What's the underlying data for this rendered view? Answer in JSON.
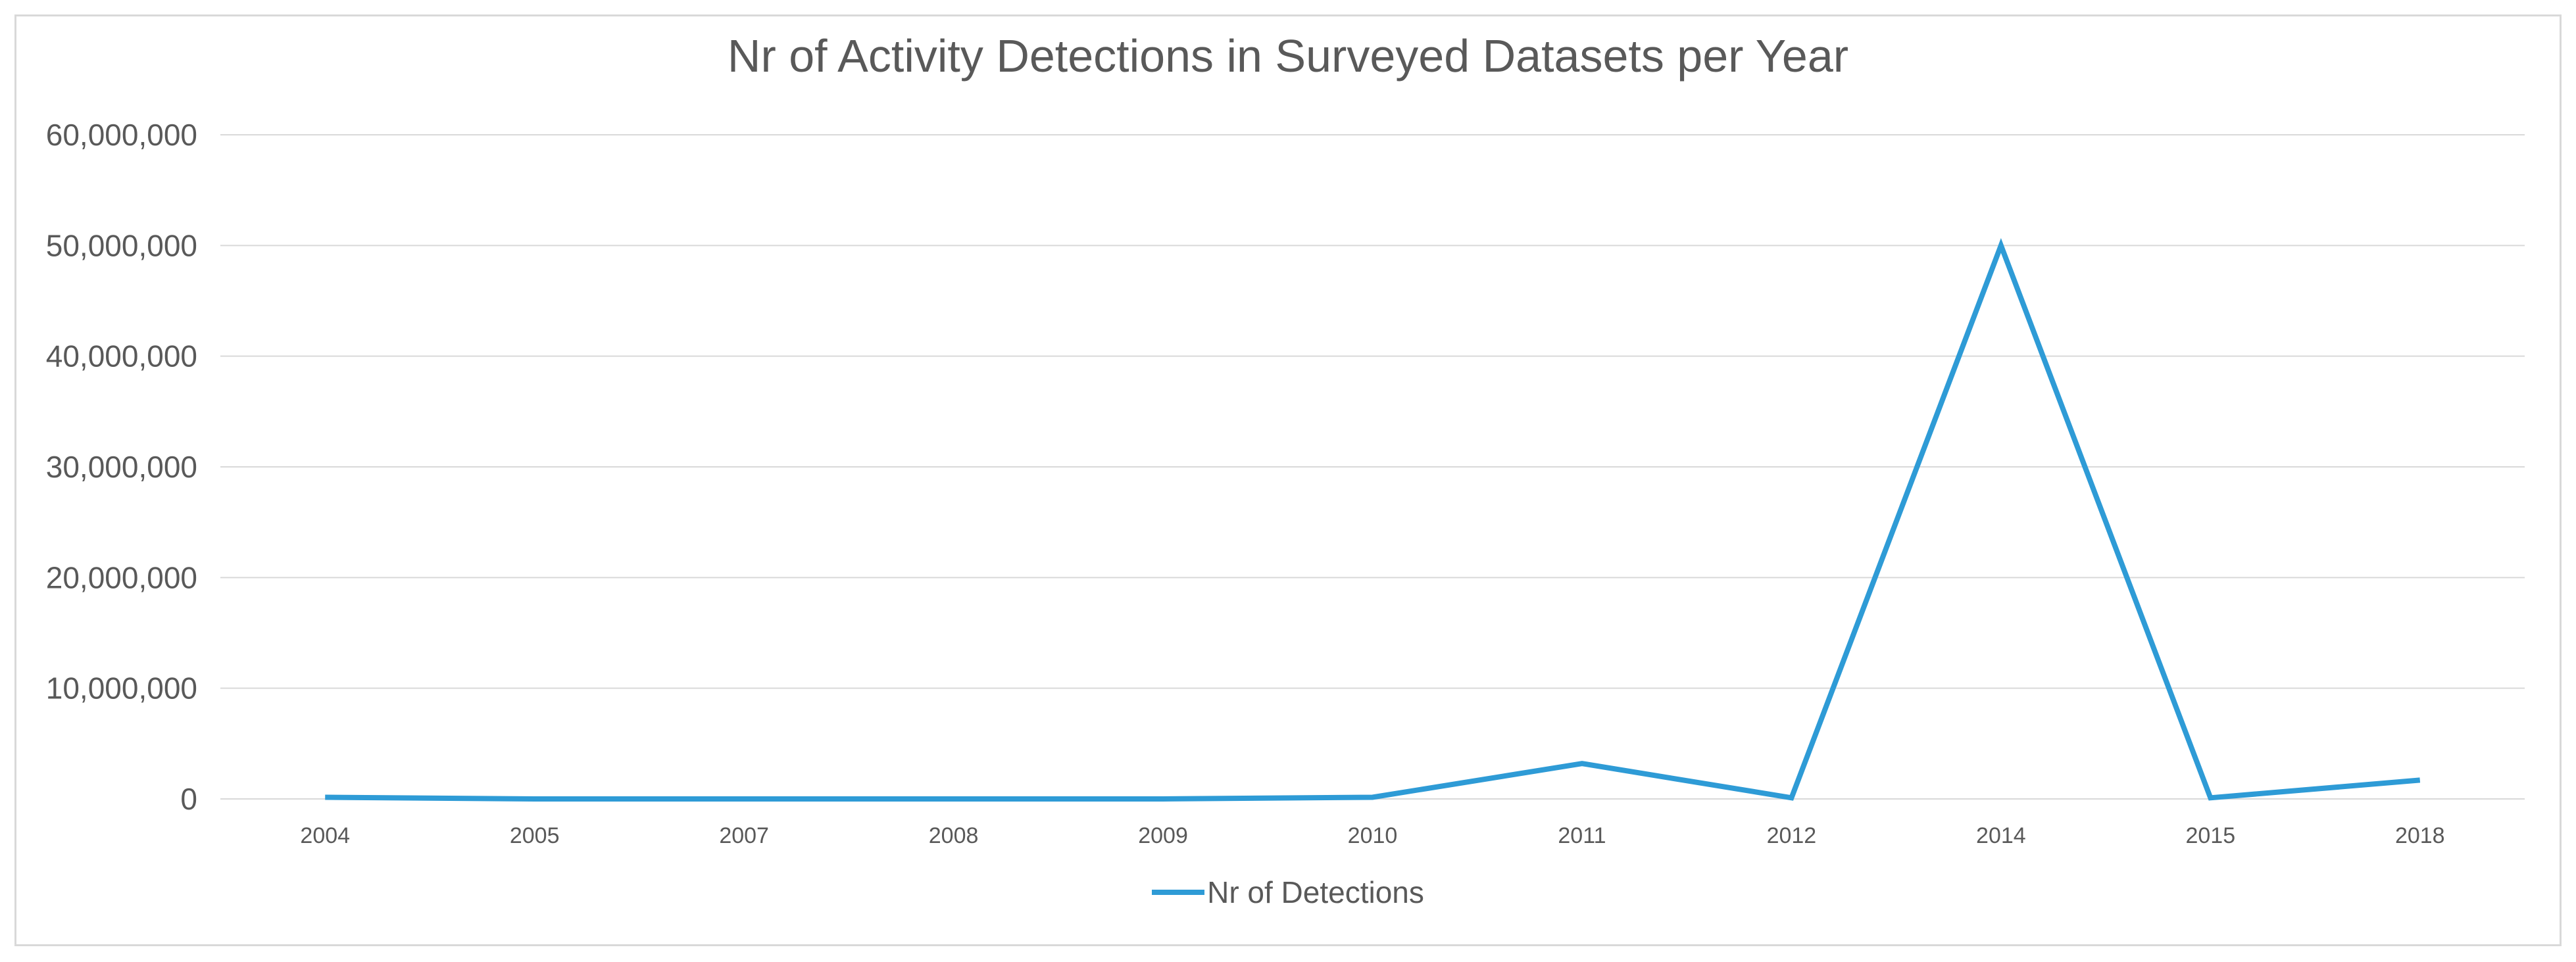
{
  "chart_data": {
    "type": "line",
    "title": "Nr of Activity Detections in Surveyed Datasets per Year",
    "xlabel": "",
    "ylabel": "",
    "categories": [
      "2004",
      "2005",
      "2007",
      "2008",
      "2009",
      "2010",
      "2011",
      "2012",
      "2014",
      "2015",
      "2018"
    ],
    "series": [
      {
        "name": "Nr of Detections",
        "color": "#2e9bd6",
        "values": [
          150000,
          0,
          0,
          0,
          0,
          150000,
          3200000,
          100000,
          50000000,
          100000,
          1700000
        ]
      }
    ],
    "ylim": [
      0,
      60000000
    ],
    "yticks": [
      0,
      10000000,
      20000000,
      30000000,
      40000000,
      50000000,
      60000000
    ],
    "ytick_labels": [
      "0",
      "10,000,000",
      "20,000,000",
      "30,000,000",
      "40,000,000",
      "50,000,000",
      "60,000,000"
    ],
    "grid": true,
    "legend_position": "bottom"
  }
}
